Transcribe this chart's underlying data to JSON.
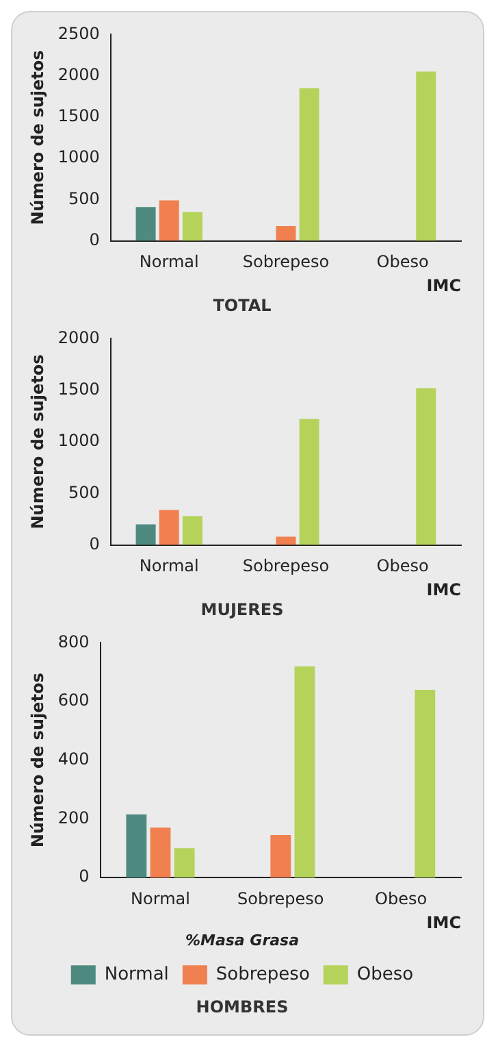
{
  "chart_data": [
    {
      "type": "bar",
      "title": "TOTAL",
      "xlabel": "IMC",
      "ylabel": "Número de sujetos",
      "categories": [
        "Normal",
        "Sobrepeso",
        "Obeso"
      ],
      "series": [
        {
          "color": "#4e8a80",
          "values": [
            410,
            null,
            null
          ]
        },
        {
          "color": "#f08050",
          "values": [
            490,
            180,
            null
          ]
        },
        {
          "color": "#b5d35a",
          "values": [
            350,
            1850,
            2050
          ]
        }
      ],
      "ylim": [
        0,
        2500
      ],
      "yticks": [
        0,
        500,
        1000,
        1500,
        2000,
        2500
      ],
      "grid": false,
      "legend": false
    },
    {
      "type": "bar",
      "title": "MUJERES",
      "xlabel": "IMC",
      "ylabel": "Número de sujetos",
      "categories": [
        "Normal",
        "Sobrepeso",
        "Obeso"
      ],
      "series": [
        {
          "color": "#4e8a80",
          "values": [
            200,
            null,
            null
          ]
        },
        {
          "color": "#f08050",
          "values": [
            340,
            80,
            null
          ]
        },
        {
          "color": "#b5d35a",
          "values": [
            280,
            1220,
            1520
          ]
        }
      ],
      "ylim": [
        0,
        2000
      ],
      "yticks": [
        0,
        500,
        1000,
        1500,
        2000
      ],
      "grid": false,
      "legend": false
    },
    {
      "type": "bar",
      "title": "HOMBRES",
      "xlabel": "IMC",
      "ylabel": "Número de sujetos",
      "categories": [
        "Normal",
        "Sobrepeso",
        "Obeso"
      ],
      "legend_title": "%Masa Grasa",
      "series": [
        {
          "name": "Normal",
          "color": "#4e8a80",
          "values": [
            215,
            null,
            null
          ]
        },
        {
          "name": "Sobrepeso",
          "color": "#f08050",
          "values": [
            170,
            145,
            null
          ]
        },
        {
          "name": "Obeso",
          "color": "#b5d35a",
          "values": [
            100,
            720,
            640
          ]
        }
      ],
      "ylim": [
        0,
        800
      ],
      "yticks": [
        0,
        200,
        400,
        600,
        800
      ],
      "grid": false,
      "legend": "bottom"
    }
  ]
}
